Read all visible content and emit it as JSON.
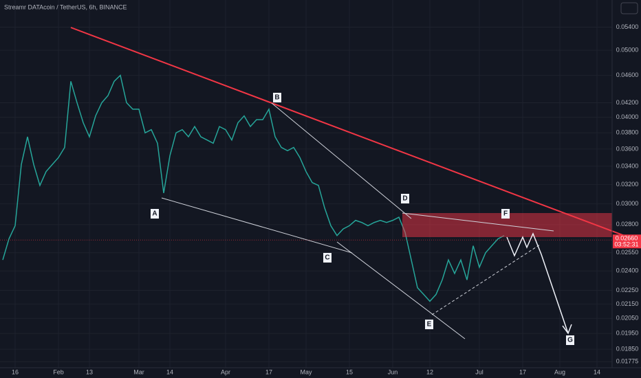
{
  "chart_data": {
    "type": "line",
    "title": "Streamr DATAcoin / TetherUS, 6h, BINANCE",
    "log_scale": true,
    "grid": true,
    "color": "#26a69a",
    "categories": [
      null,
      null,
      "16",
      null,
      null,
      null,
      null,
      null,
      null,
      "Feb",
      null,
      null,
      null,
      null,
      "13",
      null,
      null,
      null,
      null,
      null,
      null,
      null,
      "Mar",
      null,
      null,
      null,
      null,
      "14",
      null,
      null,
      null,
      null,
      null,
      null,
      null,
      null,
      "Apr",
      null,
      null,
      null,
      null,
      null,
      null,
      "17",
      null,
      null,
      null,
      null,
      null,
      "May",
      null,
      null,
      null,
      null,
      null,
      null,
      "15",
      null,
      null,
      null,
      null,
      null,
      null,
      "Jun",
      null,
      null,
      null,
      null,
      null,
      "12",
      null,
      null,
      null,
      null,
      null,
      null,
      null,
      "Jul",
      null,
      null,
      null,
      null,
      null,
      null,
      "17",
      null,
      null,
      null,
      null,
      null,
      "Aug",
      null,
      null,
      null,
      null,
      null,
      "14",
      null,
      null
    ],
    "values": [
      0.0249,
      0.0267,
      0.0279,
      0.0342,
      0.0375,
      0.0342,
      0.0319,
      0.0334,
      0.0342,
      0.035,
      0.0362,
      0.0451,
      0.042,
      0.0393,
      0.0375,
      0.0402,
      0.042,
      0.043,
      0.0451,
      0.046,
      0.042,
      0.0411,
      0.0411,
      0.038,
      0.0384,
      0.0367,
      0.0311,
      0.0352,
      0.038,
      0.0384,
      0.0375,
      0.0388,
      0.0375,
      0.0371,
      0.0367,
      0.0388,
      0.0384,
      0.0371,
      0.0393,
      0.0402,
      0.0388,
      0.0397,
      0.0397,
      0.0411,
      0.0375,
      0.0362,
      0.0358,
      0.0362,
      0.035,
      0.0334,
      0.0322,
      0.0319,
      0.0296,
      0.0279,
      0.027,
      0.0276,
      0.0279,
      0.0284,
      0.0282,
      0.0279,
      0.0282,
      0.0284,
      0.0282,
      0.0284,
      0.0287,
      0.0273,
      0.0249,
      0.0227,
      0.0222,
      0.0217,
      0.0222,
      0.0233,
      0.0249,
      0.0238,
      0.0249,
      0.0233,
      0.0261,
      0.0243,
      0.0255,
      0.0261,
      0.0267,
      0.027,
      null,
      null,
      null,
      null,
      null,
      null,
      null,
      null,
      null,
      null,
      null,
      null,
      null,
      null,
      null,
      null,
      null
    ],
    "ylim": [
      0.0174,
      0.0591
    ],
    "yticks": [
      {
        "value": 0.054,
        "label": "0.05400"
      },
      {
        "value": 0.05,
        "label": "0.05000"
      },
      {
        "value": 0.046,
        "label": "0.04600"
      },
      {
        "value": 0.042,
        "label": "0.04200"
      },
      {
        "value": 0.04,
        "label": "0.04000"
      },
      {
        "value": 0.038,
        "label": "0.03800"
      },
      {
        "value": 0.036,
        "label": "0.03600"
      },
      {
        "value": 0.034,
        "label": "0.03400"
      },
      {
        "value": 0.032,
        "label": "0.03200"
      },
      {
        "value": 0.03,
        "label": "0.03000"
      },
      {
        "value": 0.028,
        "label": "0.02800"
      },
      {
        "value": 0.0255,
        "label": "0.02550"
      },
      {
        "value": 0.024,
        "label": "0.02400"
      },
      {
        "value": 0.0225,
        "label": "0.02250"
      },
      {
        "value": 0.0215,
        "label": "0.02150"
      },
      {
        "value": 0.0205,
        "label": "0.02050"
      },
      {
        "value": 0.0195,
        "label": "0.01950"
      },
      {
        "value": 0.0185,
        "label": "0.01850"
      },
      {
        "value": 0.01775,
        "label": "0.01775"
      }
    ],
    "last_price": {
      "value": 0.0266,
      "label": "0.02660"
    },
    "countdown": "03:52:31",
    "annotations": [
      "A",
      "B",
      "C",
      "D",
      "E",
      "F",
      "G"
    ]
  }
}
